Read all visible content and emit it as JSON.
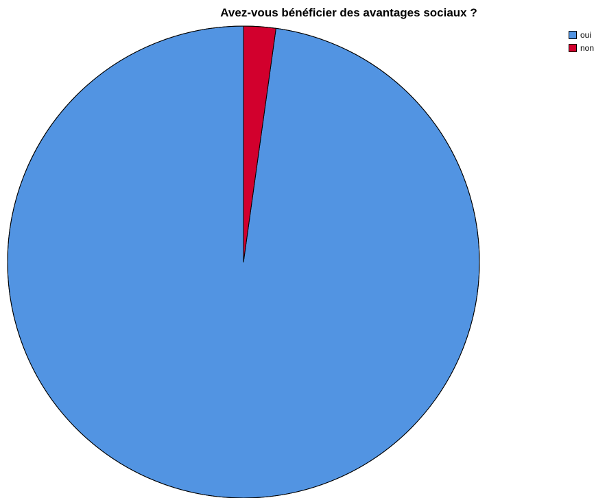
{
  "chart_data": {
    "type": "pie",
    "title": "Avez-vous bénéficier des avantages sociaux ?",
    "slices": [
      {
        "label": "oui",
        "value": 97.8,
        "color": "#5294E2"
      },
      {
        "label": "non",
        "value": 2.2,
        "color": "#D2002D"
      }
    ],
    "start_angle_deg": 0,
    "direction": "counterclockwise",
    "legend_position": "top-right"
  }
}
